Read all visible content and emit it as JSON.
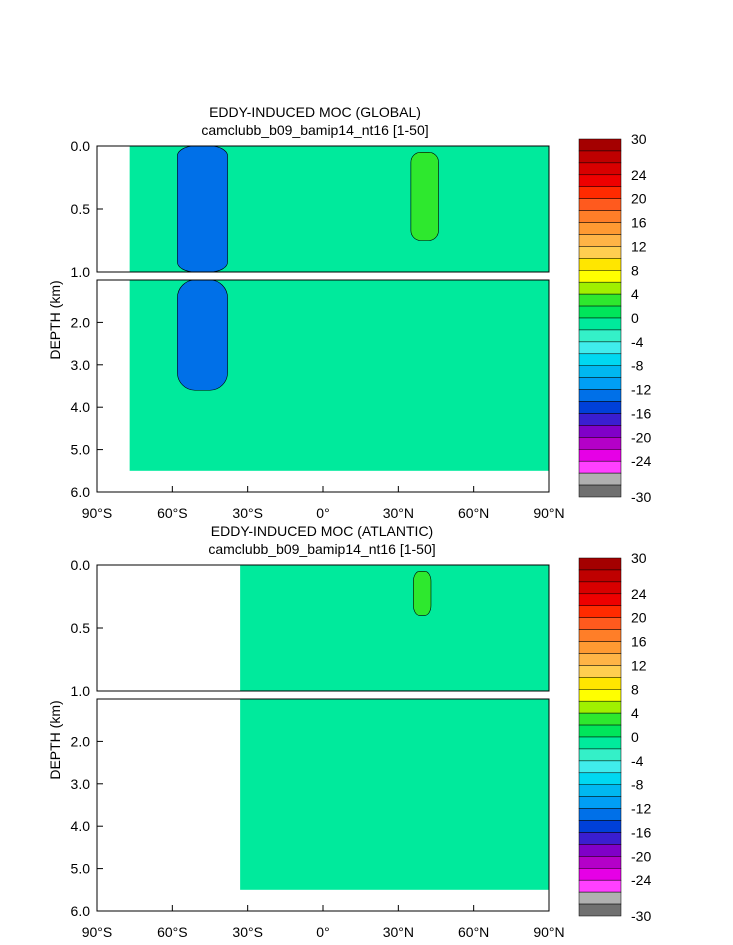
{
  "chart_data": [
    {
      "type": "heatmap",
      "title": "EDDY-INDUCED MOC (GLOBAL)",
      "subtitle": "camclubb_b09_bamip14_nt16 [1-50]",
      "ylabel": "DEPTH (km)",
      "xlim": [
        -90,
        90
      ],
      "upper_panel_ylim": [
        0.0,
        1.0
      ],
      "lower_panel_ylim": [
        1.0,
        6.0
      ],
      "x_tick_labels": [
        "90°S",
        "60°S",
        "30°S",
        "0°",
        "30°N",
        "60°N",
        "90°N"
      ],
      "upper_y_tick_labels": [
        "0.0",
        "0.5",
        "1.0"
      ],
      "lower_y_tick_labels": [
        "2.0",
        "3.0",
        "4.0",
        "5.0",
        "6.0"
      ],
      "ocean_extent_lat": [
        -77,
        90
      ],
      "max_depth": 5.5,
      "features": [
        {
          "lat_range": [
            -58,
            -38
          ],
          "depth_range": [
            0.0,
            3.6
          ],
          "value": -12
        },
        {
          "lat_range": [
            35,
            46
          ],
          "depth_range": [
            0.05,
            0.75
          ],
          "value": 3
        }
      ],
      "background_value": 0
    },
    {
      "type": "heatmap",
      "title": "EDDY-INDUCED MOC (ATLANTIC)",
      "subtitle": "camclubb_b09_bamip14_nt16 [1-50]",
      "ylabel": "DEPTH (km)",
      "xlim": [
        -90,
        90
      ],
      "upper_panel_ylim": [
        0.0,
        1.0
      ],
      "lower_panel_ylim": [
        1.0,
        6.0
      ],
      "x_tick_labels": [
        "90°S",
        "60°S",
        "30°S",
        "0°",
        "30°N",
        "60°N",
        "90°N"
      ],
      "upper_y_tick_labels": [
        "0.0",
        "0.5",
        "1.0"
      ],
      "lower_y_tick_labels": [
        "2.0",
        "3.0",
        "4.0",
        "5.0",
        "6.0"
      ],
      "ocean_extent_lat": [
        -33,
        90
      ],
      "max_depth": 5.5,
      "features": [
        {
          "lat_range": [
            36,
            43
          ],
          "depth_range": [
            0.05,
            0.4
          ],
          "value": 3
        }
      ],
      "background_value": 0
    }
  ],
  "colorbar": {
    "labels": [
      "30",
      "24",
      "20",
      "16",
      "12",
      "8",
      "4",
      "0",
      "-4",
      "-8",
      "-12",
      "-16",
      "-20",
      "-24",
      "-30"
    ],
    "colors": [
      "#a40000",
      "#bf0000",
      "#d80000",
      "#ee0000",
      "#ff2a00",
      "#ff5a1e",
      "#ff7e28",
      "#ff9a32",
      "#ffb446",
      "#ffce50",
      "#ffe600",
      "#ffff00",
      "#a0f000",
      "#2ee82e",
      "#00e65a",
      "#00ea9c",
      "#34f0c8",
      "#40ecec",
      "#00d8f0",
      "#00b8f0",
      "#009ff5",
      "#0070e8",
      "#0040d8",
      "#3a1ed0",
      "#8000c8",
      "#b400c8",
      "#e600e6",
      "#ff40ff",
      "#b0b0b0",
      "#707070"
    ]
  }
}
